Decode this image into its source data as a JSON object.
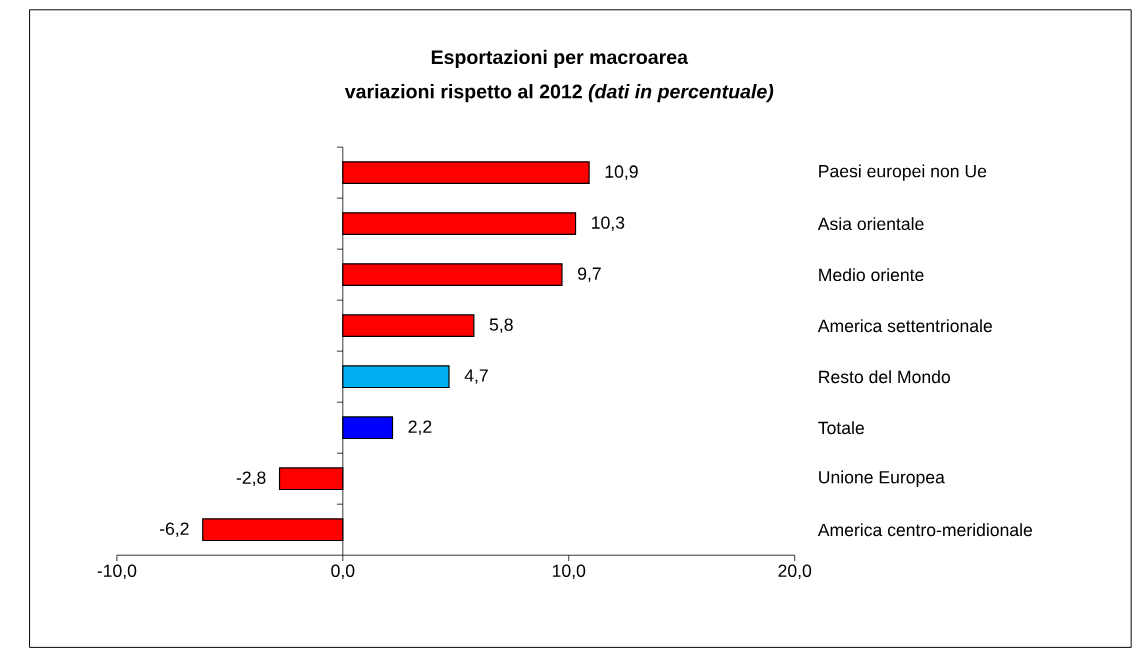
{
  "chart_data": {
    "type": "bar",
    "orientation": "horizontal",
    "title": "Esportazioni per macroarea",
    "subtitle": "variazioni rispetto al 2012 *(dati in percentuale)*",
    "categories": [
      "Paesi europei non Ue",
      "Asia orientale",
      "Medio oriente",
      "America settentrionale",
      "Resto del Mondo",
      "Totale",
      "Unione Europea",
      "America centro-meridionale"
    ],
    "values": [
      10.9,
      10.3,
      9.7,
      5.8,
      4.7,
      2.2,
      -2.8,
      -6.2
    ],
    "value_labels": [
      "10,9",
      "10,3",
      "9,7",
      "5,8",
      "4,7",
      "2,2",
      "-2,8",
      "-6,2"
    ],
    "colors": [
      "#ff0000",
      "#ff0000",
      "#ff0000",
      "#ff0000",
      "#00b0f0",
      "#0000ff",
      "#ff0000",
      "#ff0000"
    ],
    "xlim": [
      -10,
      20
    ],
    "xticks": [
      {
        "value": -10,
        "label": "-10,0"
      },
      {
        "value": 0,
        "label": "0,0"
      },
      {
        "value": 10,
        "label": "10,0"
      },
      {
        "value": 20,
        "label": "20,0"
      }
    ]
  }
}
